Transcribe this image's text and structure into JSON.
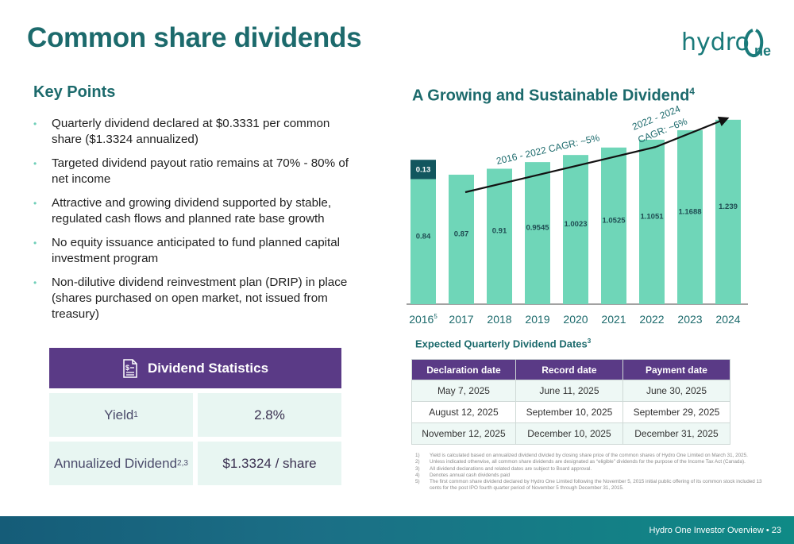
{
  "header": {
    "title": "Common share dividends"
  },
  "logo": {
    "text": "hydro",
    "accent": "One"
  },
  "key_points": {
    "heading": "Key Points",
    "items": [
      "Quarterly dividend declared at $0.3331 per common share ($1.3324 annualized)",
      "Targeted dividend payout ratio remains at 70% - 80% of net income",
      "Attractive and growing dividend supported by stable, regulated cash flows and planned rate base growth",
      "No equity issuance anticipated to fund planned capital investment program",
      "Non-dilutive dividend reinvestment plan (DRIP) in place (shares purchased on open market, not issued from treasury)"
    ]
  },
  "stats": {
    "heading": "Dividend Statistics",
    "yield_label": "Yield",
    "yield_sup": "1",
    "yield_value": "2.8%",
    "annual_label": "Annualized Dividend",
    "annual_sup": "2,3",
    "annual_value": "$1.3324 / share"
  },
  "chart_title": "A Growing and Sustainable Dividend",
  "chart_title_sup": "4",
  "chart_data": {
    "type": "bar",
    "categories": [
      "2016",
      "2017",
      "2018",
      "2019",
      "2020",
      "2021",
      "2022",
      "2023",
      "2024"
    ],
    "category_sups": [
      "5",
      "",
      "",
      "",
      "",
      "",
      "",
      "",
      ""
    ],
    "series": [
      {
        "values": [
          0.84,
          0.87,
          0.91,
          0.9545,
          1.0023,
          1.0525,
          1.1051,
          1.1688,
          1.239
        ]
      },
      {
        "values": [
          0.13,
          0,
          0,
          0,
          0,
          0,
          0,
          0,
          0
        ]
      }
    ],
    "labels": [
      "0.84",
      "0.87",
      "0.91",
      "0.9545",
      "1.0023",
      "1.0525",
      "1.1051",
      "1.1688",
      "1.239"
    ],
    "stack_label": "0.13",
    "annotations": [
      "2016 - 2022 CAGR: ~5%",
      "2022 - 2024",
      "CAGR: ~6%"
    ],
    "colors": {
      "base": "#6fd6b8",
      "stack": "#12565e",
      "axis": "#444444",
      "tick": "#1c6a6c"
    },
    "ylim": [
      0,
      1.35
    ]
  },
  "dates": {
    "heading": "Expected Quarterly Dividend Dates",
    "heading_sup": "3",
    "columns": [
      "Declaration date",
      "Record date",
      "Payment date"
    ],
    "rows": [
      [
        "May 7, 2025",
        "June 11, 2025",
        "June 30, 2025"
      ],
      [
        "August 12, 2025",
        "September 10, 2025",
        "September 29, 2025"
      ],
      [
        "November 12, 2025",
        "December 10, 2025",
        "December 31, 2025"
      ]
    ]
  },
  "footnotes": [
    {
      "n": "1)",
      "text": "Yield is calculated based on annualized dividend divided by closing share price of the common shares of Hydro One Limited on March 31, 2025."
    },
    {
      "n": "2)",
      "text": "Unless indicated otherwise, all common share dividends are designated as “eligible” dividends for the purpose of the Income Tax Act (Canada)."
    },
    {
      "n": "3)",
      "text": "All dividend declarations and related dates are subject to Board approval."
    },
    {
      "n": "4)",
      "text": "Denotes annual cash dividends paid"
    },
    {
      "n": "5)",
      "text": "The first common share dividend declared by Hydro One Limited following the November 5, 2015 initial public offering of its common stock included 13 cents for the post IPO fourth quarter period of November 5 through December 31, 2015."
    }
  ],
  "footer": {
    "text": "Hydro One Investor Overview  •  23"
  }
}
